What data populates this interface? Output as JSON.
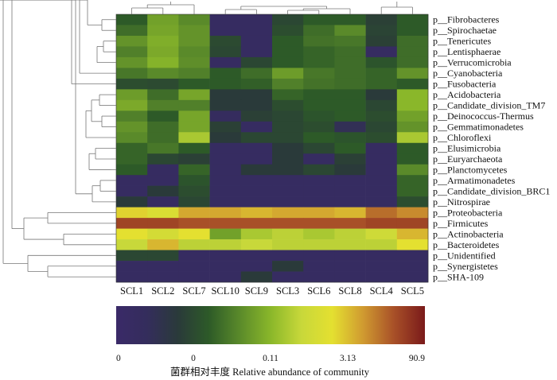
{
  "chart_data": {
    "type": "heatmap",
    "title": "",
    "rows": [
      "p__Fibrobacteres",
      "p__Spirochaetae",
      "p__Tenericutes",
      "p__Lentisphaerae",
      "p__Verrucomicrobia",
      "p__Cyanobacteria",
      "p__Fusobacteria",
      "p__Acidobacteria",
      "p__Candidate_division_TM7",
      "p__Deinococcus-Thermus",
      "p__Gemmatimonadetes",
      "p__Chloroflexi",
      "p__Elusimicrobia",
      "p__Euryarchaeota",
      "p__Planctomycetes",
      "p__Armatimonadetes",
      "p__Candidate_division_BRC1",
      "p__Nitrospirae",
      "p__Proteobacteria",
      "p__Firmicutes",
      "p__Actinobacteria",
      "p__Bacteroidetes",
      "p__Unidentified",
      "p__Synergistetes",
      "p__SHA-109"
    ],
    "columns": [
      "SCL1",
      "SCL2",
      "SCL7",
      "SCL10",
      "SCL9",
      "SCL3",
      "SCL6",
      "SCL8",
      "SCL4",
      "SCL5"
    ],
    "color_index": [
      [
        0.3,
        0.45,
        0.4,
        0.06,
        0.06,
        0.24,
        0.3,
        0.3,
        0.22,
        0.3
      ],
      [
        0.34,
        0.46,
        0.42,
        0.06,
        0.06,
        0.26,
        0.34,
        0.4,
        0.23,
        0.3
      ],
      [
        0.42,
        0.48,
        0.42,
        0.25,
        0.06,
        0.3,
        0.35,
        0.36,
        0.22,
        0.34
      ],
      [
        0.38,
        0.47,
        0.4,
        0.24,
        0.06,
        0.3,
        0.32,
        0.34,
        0.06,
        0.34
      ],
      [
        0.42,
        0.49,
        0.41,
        0.06,
        0.24,
        0.3,
        0.32,
        0.34,
        0.28,
        0.34
      ],
      [
        0.36,
        0.4,
        0.38,
        0.3,
        0.34,
        0.44,
        0.36,
        0.34,
        0.32,
        0.42
      ],
      [
        0.26,
        0.25,
        0.3,
        0.3,
        0.31,
        0.38,
        0.35,
        0.34,
        0.32,
        0.3
      ],
      [
        0.44,
        0.34,
        0.46,
        0.2,
        0.2,
        0.32,
        0.3,
        0.3,
        0.2,
        0.5
      ],
      [
        0.47,
        0.38,
        0.38,
        0.2,
        0.2,
        0.26,
        0.3,
        0.3,
        0.24,
        0.5
      ],
      [
        0.38,
        0.3,
        0.46,
        0.08,
        0.22,
        0.24,
        0.28,
        0.3,
        0.26,
        0.45
      ],
      [
        0.42,
        0.34,
        0.46,
        0.22,
        0.06,
        0.24,
        0.26,
        0.12,
        0.24,
        0.42
      ],
      [
        0.4,
        0.34,
        0.55,
        0.2,
        0.24,
        0.24,
        0.3,
        0.28,
        0.26,
        0.55
      ],
      [
        0.32,
        0.36,
        0.3,
        0.06,
        0.06,
        0.2,
        0.24,
        0.3,
        0.06,
        0.3
      ],
      [
        0.32,
        0.24,
        0.22,
        0.06,
        0.06,
        0.2,
        0.06,
        0.22,
        0.06,
        0.3
      ],
      [
        0.3,
        0.06,
        0.32,
        0.06,
        0.2,
        0.2,
        0.24,
        0.2,
        0.06,
        0.4
      ],
      [
        0.06,
        0.06,
        0.28,
        0.06,
        0.06,
        0.06,
        0.06,
        0.06,
        0.06,
        0.32
      ],
      [
        0.06,
        0.2,
        0.26,
        0.06,
        0.06,
        0.06,
        0.06,
        0.06,
        0.06,
        0.32
      ],
      [
        0.2,
        0.06,
        0.24,
        0.06,
        0.06,
        0.06,
        0.06,
        0.06,
        0.06,
        0.26
      ],
      [
        0.72,
        0.66,
        0.78,
        0.78,
        0.76,
        0.78,
        0.78,
        0.76,
        0.86,
        0.82
      ],
      [
        0.92,
        0.92,
        0.9,
        0.9,
        0.9,
        0.9,
        0.9,
        0.9,
        0.92,
        0.92
      ],
      [
        0.7,
        0.64,
        0.7,
        0.45,
        0.55,
        0.58,
        0.55,
        0.58,
        0.62,
        0.76
      ],
      [
        0.6,
        0.76,
        0.58,
        0.58,
        0.6,
        0.58,
        0.58,
        0.58,
        0.58,
        0.7
      ],
      [
        0.24,
        0.24,
        0.06,
        0.06,
        0.06,
        0.06,
        0.06,
        0.06,
        0.06,
        0.06
      ],
      [
        0.06,
        0.06,
        0.06,
        0.06,
        0.06,
        0.2,
        0.06,
        0.06,
        0.06,
        0.06
      ],
      [
        0.06,
        0.06,
        0.06,
        0.06,
        0.2,
        0.06,
        0.06,
        0.06,
        0.06,
        0.06
      ]
    ],
    "color_scale": {
      "stops": [
        "#3a2a68",
        "#342d5c",
        "#2a3a3a",
        "#2d5a28",
        "#5a8a2a",
        "#8ab72a",
        "#c8d83a",
        "#e4e030",
        "#d09a30",
        "#a85028",
        "#7a1a1a"
      ],
      "tick_labels": [
        "0",
        "0",
        "0.11",
        "3.13",
        "90.9"
      ],
      "tick_fraction": [
        0.0,
        0.25,
        0.5,
        0.75,
        1.0
      ]
    },
    "legend_title": "菌群相对丰度 Relative abundance of community"
  }
}
